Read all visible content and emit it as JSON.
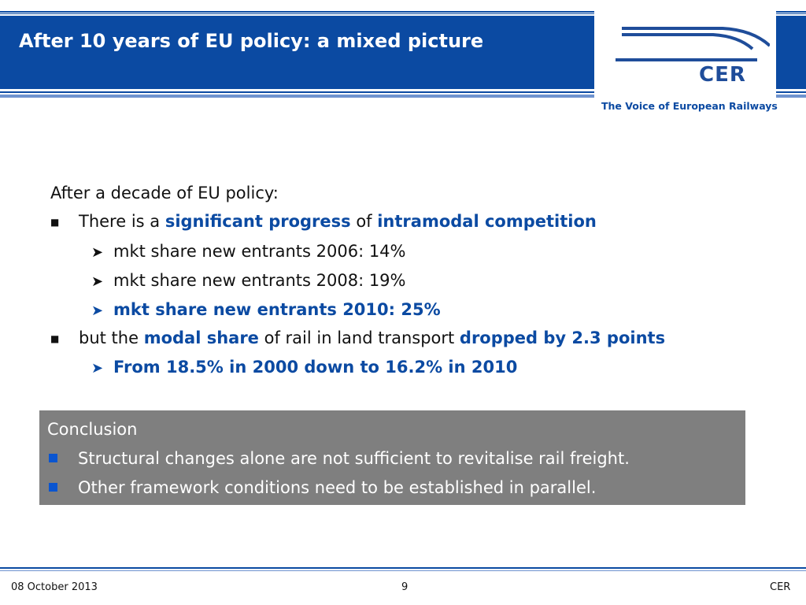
{
  "header": {
    "title": "After 10 years of EU policy: a mixed picture",
    "logo_text": "CER",
    "tagline": "The Voice of European Railways"
  },
  "body": {
    "intro": "After a decade of EU policy:",
    "point1": {
      "pre": "There is a ",
      "hl1": "significant progress",
      "mid": " of ",
      "hl2": "intramodal competition"
    },
    "sub1": [
      "mkt share new entrants 2006: 14%",
      "mkt share new entrants 2008: 19%",
      "mkt share new entrants 2010: 25%"
    ],
    "point2": {
      "pre": "but the ",
      "hl1": "modal share",
      "mid": " of rail in land transport ",
      "hl2": "dropped by 2.3 points"
    },
    "sub2": "From 18.5% in 2000 down to 16.2% in 2010"
  },
  "conclusion": {
    "title": "Conclusion",
    "items": [
      "Structural changes alone are not sufficient to revitalise rail freight.",
      "Other framework conditions need to be established in parallel."
    ]
  },
  "footer": {
    "date": "08 October 2013",
    "page": "9",
    "org": "CER"
  },
  "colors": {
    "brand_blue": "#0b4aa2",
    "box_grey": "#7f7f7f"
  }
}
